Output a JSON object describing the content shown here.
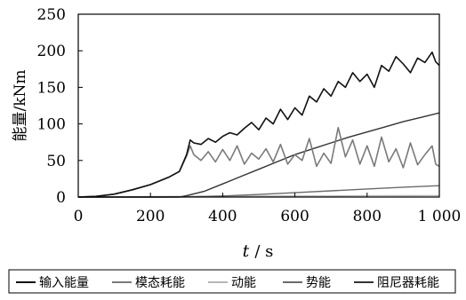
{
  "chart_data": {
    "type": "line",
    "xlabel_var": "t",
    "xlabel_unit": "/ s",
    "ylabel": "能量/kNm",
    "xlim": [
      0,
      1000
    ],
    "ylim": [
      0,
      250
    ],
    "x_ticks": [
      "0",
      "200",
      "400",
      "600",
      "800",
      "1 000"
    ],
    "y_ticks": [
      "0",
      "50",
      "100",
      "150",
      "200",
      "250"
    ],
    "grid": false,
    "legend_position": "bottom",
    "series": [
      {
        "name": "输入能量",
        "color": "#111111",
        "x": [
          0,
          50,
          100,
          150,
          200,
          250,
          280,
          300,
          310,
          320,
          340,
          360,
          380,
          400,
          420,
          440,
          460,
          480,
          500,
          520,
          540,
          560,
          580,
          600,
          620,
          640,
          660,
          680,
          700,
          720,
          740,
          760,
          780,
          800,
          820,
          840,
          860,
          880,
          900,
          920,
          940,
          960,
          980,
          990,
          1000
        ],
        "values": [
          0,
          1,
          4,
          10,
          17,
          27,
          35,
          58,
          78,
          74,
          72,
          80,
          75,
          83,
          88,
          85,
          94,
          102,
          92,
          108,
          100,
          120,
          106,
          122,
          112,
          138,
          130,
          148,
          138,
          158,
          150,
          170,
          158,
          168,
          150,
          180,
          172,
          192,
          182,
          170,
          190,
          184,
          198,
          185,
          180
        ]
      },
      {
        "name": "模态耗能",
        "color": "#7a7a7a",
        "x": [
          0,
          50,
          100,
          150,
          200,
          250,
          280,
          300,
          310,
          320,
          340,
          360,
          380,
          400,
          420,
          440,
          460,
          480,
          500,
          520,
          540,
          560,
          580,
          600,
          620,
          640,
          660,
          680,
          700,
          720,
          740,
          760,
          780,
          800,
          820,
          840,
          860,
          880,
          900,
          920,
          940,
          960,
          980,
          990,
          1000
        ],
        "values": [
          0,
          1,
          4,
          10,
          17,
          27,
          35,
          56,
          70,
          58,
          50,
          62,
          48,
          65,
          50,
          70,
          45,
          60,
          52,
          66,
          48,
          72,
          45,
          58,
          50,
          80,
          42,
          60,
          46,
          95,
          55,
          78,
          45,
          70,
          42,
          82,
          48,
          66,
          40,
          74,
          44,
          58,
          70,
          45,
          42
        ]
      },
      {
        "name": "动能",
        "color": "#b5b5b5",
        "x": [
          0,
          100,
          200,
          280,
          300,
          400,
          500,
          600,
          700,
          800,
          900,
          1000
        ],
        "values": [
          0,
          0.3,
          0.6,
          0.8,
          0.9,
          1.1,
          1.3,
          1.4,
          1.5,
          1.7,
          1.8,
          2.0
        ]
      },
      {
        "name": "势能",
        "color": "#6a6a6a",
        "x": [
          0,
          100,
          200,
          300,
          400,
          500,
          600,
          700,
          800,
          900,
          1000
        ],
        "values": [
          0,
          0,
          0,
          0.3,
          1.5,
          3.5,
          6,
          8.5,
          11,
          13.5,
          15.5
        ]
      },
      {
        "name": "阻尼器耗能",
        "color": "#333333",
        "x": [
          0,
          280,
          300,
          350,
          400,
          450,
          500,
          550,
          600,
          650,
          700,
          750,
          800,
          850,
          900,
          950,
          1000
        ],
        "values": [
          0,
          0,
          2,
          8,
          18,
          28,
          38,
          48,
          58,
          66,
          74,
          82,
          89,
          96,
          103,
          109,
          115
        ]
      }
    ]
  }
}
